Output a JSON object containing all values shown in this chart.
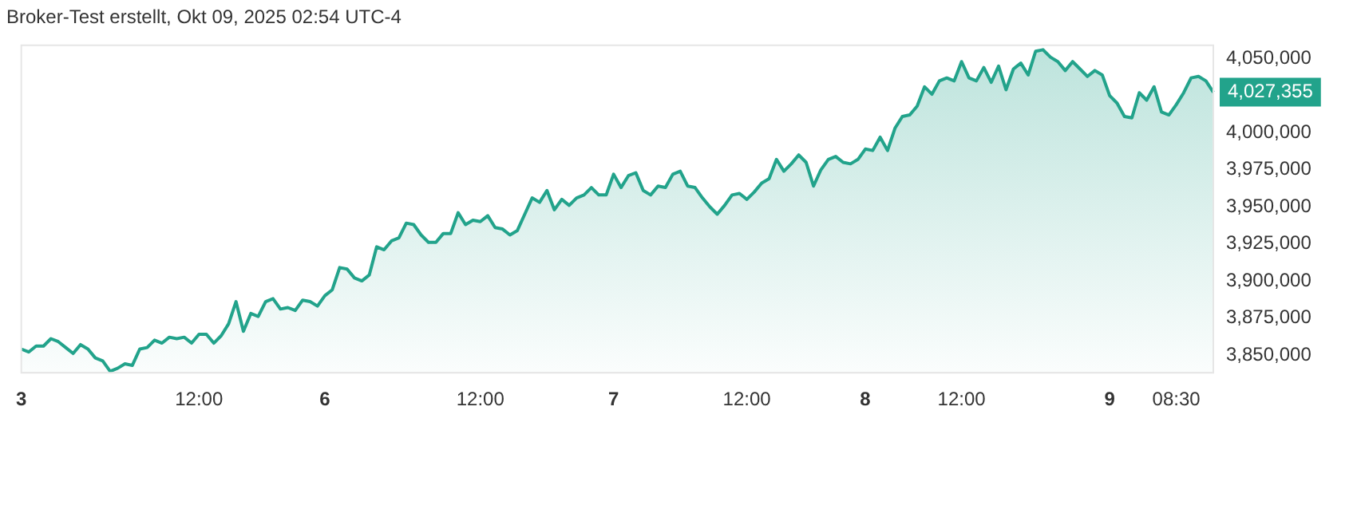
{
  "chart_data": {
    "type": "area",
    "title": "Broker-Test erstellt, Okt 09, 2025 02:54 UTC-4",
    "categories": [
      "3",
      null,
      null,
      null,
      null,
      null,
      null,
      null,
      null,
      null,
      null,
      null,
      null,
      null,
      null,
      null,
      null,
      null,
      null,
      null,
      null,
      null,
      null,
      null,
      "12:00",
      null,
      null,
      null,
      null,
      null,
      null,
      null,
      null,
      null,
      null,
      null,
      null,
      null,
      null,
      null,
      null,
      "6",
      null,
      null,
      null,
      null,
      null,
      null,
      null,
      null,
      null,
      null,
      null,
      null,
      null,
      null,
      null,
      null,
      null,
      null,
      null,
      null,
      "12:00",
      null,
      null,
      null,
      null,
      null,
      null,
      null,
      null,
      null,
      null,
      null,
      null,
      null,
      null,
      null,
      null,
      null,
      "7",
      null,
      null,
      null,
      null,
      null,
      null,
      null,
      null,
      null,
      null,
      null,
      null,
      null,
      null,
      null,
      null,
      null,
      "12:00",
      null,
      null,
      null,
      null,
      null,
      null,
      null,
      null,
      null,
      null,
      null,
      null,
      null,
      null,
      null,
      "8",
      null,
      null,
      null,
      null,
      null,
      null,
      null,
      null,
      null,
      null,
      null,
      null,
      "12:00",
      null,
      null,
      null,
      null,
      null,
      null,
      null,
      null,
      null,
      null,
      null,
      null,
      null,
      null,
      null,
      null,
      null,
      null,
      null,
      "9",
      null,
      null,
      null,
      null,
      null,
      null,
      null,
      null,
      "08:30",
      null,
      null,
      null,
      null,
      null
    ],
    "series": [
      {
        "color": "#22a38b",
        "values": [
          3854000,
          3852000,
          3856000,
          3856000,
          3861000,
          3859000,
          3855000,
          3851000,
          3857000,
          3854000,
          3848000,
          3846000,
          3839000,
          3841000,
          3844000,
          3843000,
          3854000,
          3855000,
          3860000,
          3858000,
          3862000,
          3861000,
          3862000,
          3858000,
          3864000,
          3864000,
          3858000,
          3863000,
          3871000,
          3886000,
          3866000,
          3878000,
          3876000,
          3886000,
          3888000,
          3881000,
          3882000,
          3880000,
          3887000,
          3886000,
          3883000,
          3890000,
          3894000,
          3909000,
          3908000,
          3902000,
          3900000,
          3904000,
          3923000,
          3921000,
          3927000,
          3929000,
          3939000,
          3938000,
          3931000,
          3926000,
          3926000,
          3932000,
          3932000,
          3946000,
          3938000,
          3941000,
          3940000,
          3944000,
          3936000,
          3935000,
          3931000,
          3934000,
          3945000,
          3956000,
          3953000,
          3961000,
          3948000,
          3955000,
          3951000,
          3956000,
          3958000,
          3963000,
          3958000,
          3958000,
          3972000,
          3963000,
          3971000,
          3973000,
          3961000,
          3958000,
          3964000,
          3963000,
          3972000,
          3974000,
          3964000,
          3963000,
          3956000,
          3950000,
          3945000,
          3951000,
          3958000,
          3959000,
          3955000,
          3960000,
          3966000,
          3969000,
          3982000,
          3974000,
          3979000,
          3985000,
          3980000,
          3964000,
          3975000,
          3982000,
          3984000,
          3980000,
          3979000,
          3982000,
          3989000,
          3988000,
          3997000,
          3988000,
          4003000,
          4011000,
          4012000,
          4018000,
          4031000,
          4026000,
          4035000,
          4037000,
          4035000,
          4048000,
          4037000,
          4035000,
          4044000,
          4034000,
          4045000,
          4029000,
          4043000,
          4047000,
          4039000,
          4055000,
          4056000,
          4051000,
          4048000,
          4042000,
          4048000,
          4043000,
          4038000,
          4042000,
          4039000,
          4025000,
          4020000,
          4011000,
          4010000,
          4027000,
          4022000,
          4031000,
          4014000,
          4012000,
          4019000,
          4027000,
          4037000,
          4038000,
          4035000,
          4027355
        ]
      }
    ],
    "ylim": [
      3838000,
      4059000
    ],
    "yticks": [
      {
        "value": 3850000,
        "label": "3,850,000"
      },
      {
        "value": 3875000,
        "label": "3,875,000"
      },
      {
        "value": 3900000,
        "label": "3,900,000"
      },
      {
        "value": 3925000,
        "label": "3,925,000"
      },
      {
        "value": 3950000,
        "label": "3,950,000"
      },
      {
        "value": 3975000,
        "label": "3,975,000"
      },
      {
        "value": 4000000,
        "label": "4,000,000"
      },
      {
        "value": 4050000,
        "label": "4,050,000"
      }
    ],
    "annotations": [
      "4,027,355"
    ],
    "grid": false,
    "legend": false,
    "marker": "none",
    "line_style": "solid"
  }
}
